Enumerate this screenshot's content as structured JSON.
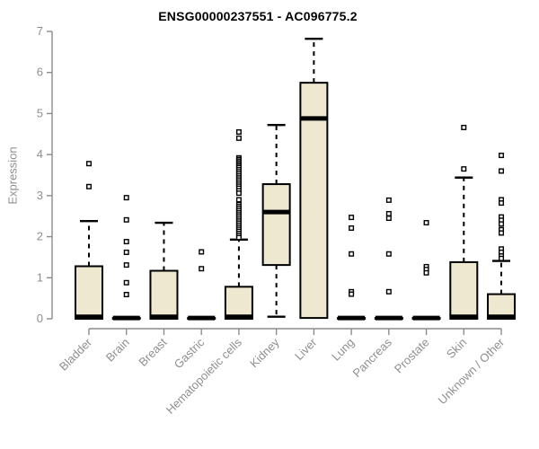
{
  "chart_data": {
    "type": "boxplot",
    "title": "ENSG00000237551 - AC096775.2",
    "xlabel": "",
    "ylabel": "Expression",
    "ylim": [
      0,
      7
    ],
    "yticks": [
      0,
      1,
      2,
      3,
      4,
      5,
      6,
      7
    ],
    "grid": false,
    "legend": false,
    "box_fill_color": "#ede8cf",
    "box_stroke_color": "#000000",
    "axis_color": "#8c8c8c",
    "tick_label_color": "#8f8f8f",
    "title_color": "#000000",
    "categories": [
      {
        "label": "Bladder",
        "q1": 0,
        "median": 0.05,
        "q3": 1.28,
        "whisker_low": 0,
        "whisker_high": 2.38,
        "outliers": [
          3.78,
          3.22
        ]
      },
      {
        "label": "Brain",
        "q1": 0,
        "median": 0.02,
        "q3": 0.02,
        "whisker_low": 0,
        "whisker_high": 0.02,
        "outliers": [
          2.95,
          2.41,
          1.88,
          1.62,
          1.31,
          0.88,
          0.59
        ]
      },
      {
        "label": "Breast",
        "q1": 0,
        "median": 0.05,
        "q3": 1.17,
        "whisker_low": 0,
        "whisker_high": 2.34,
        "outliers": []
      },
      {
        "label": "Gastric",
        "q1": 0,
        "median": 0.02,
        "q3": 0.02,
        "whisker_low": 0,
        "whisker_high": 0.02,
        "outliers": [
          1.63,
          1.22
        ]
      },
      {
        "label": "Hematopoietic cells",
        "q1": 0,
        "median": 0.05,
        "q3": 0.78,
        "whisker_low": 0,
        "whisker_high": 1.93,
        "outliers": [
          4.55,
          4.4,
          3.92,
          3.88,
          3.84,
          3.8,
          3.76,
          3.72,
          3.68,
          3.63,
          3.58,
          3.53,
          3.48,
          3.43,
          3.38,
          3.33,
          3.28,
          3.23,
          3.18,
          3.12,
          3.06,
          2.9,
          2.78,
          2.73,
          2.68,
          2.63,
          2.58,
          2.53,
          2.48,
          2.43,
          2.38,
          2.33,
          2.28,
          2.23,
          2.18,
          2.13,
          2.08,
          2.03,
          1.98
        ]
      },
      {
        "label": "Kidney",
        "q1": 1.31,
        "median": 2.6,
        "q3": 3.28,
        "whisker_low": 0.05,
        "whisker_high": 4.72,
        "outliers": []
      },
      {
        "label": "Liver",
        "q1": 0.02,
        "median": 4.88,
        "q3": 5.75,
        "whisker_low": 0.02,
        "whisker_high": 6.82,
        "outliers": []
      },
      {
        "label": "Lung",
        "q1": 0,
        "median": 0.02,
        "q3": 0.02,
        "whisker_low": 0,
        "whisker_high": 0.02,
        "outliers": [
          2.47,
          2.21,
          1.58,
          0.66,
          0.6
        ]
      },
      {
        "label": "Pancreas",
        "q1": 0,
        "median": 0.02,
        "q3": 0.02,
        "whisker_low": 0,
        "whisker_high": 0.02,
        "outliers": [
          2.89,
          2.56,
          2.45,
          1.58,
          0.66
        ]
      },
      {
        "label": "Prostate",
        "q1": 0,
        "median": 0.02,
        "q3": 0.02,
        "whisker_low": 0,
        "whisker_high": 0.02,
        "outliers": [
          2.34,
          1.27,
          1.2,
          1.12
        ]
      },
      {
        "label": "Skin",
        "q1": 0,
        "median": 0.05,
        "q3": 1.38,
        "whisker_low": 0,
        "whisker_high": 3.44,
        "outliers": [
          4.66,
          3.65
        ]
      },
      {
        "label": "Unknown / Other",
        "q1": 0,
        "median": 0.05,
        "q3": 0.6,
        "whisker_low": 0,
        "whisker_high": 1.41,
        "outliers": [
          3.98,
          3.6,
          2.9,
          2.82,
          2.48,
          2.4,
          2.31,
          2.17,
          2.09,
          1.7,
          1.62,
          1.53,
          1.47
        ]
      }
    ]
  }
}
